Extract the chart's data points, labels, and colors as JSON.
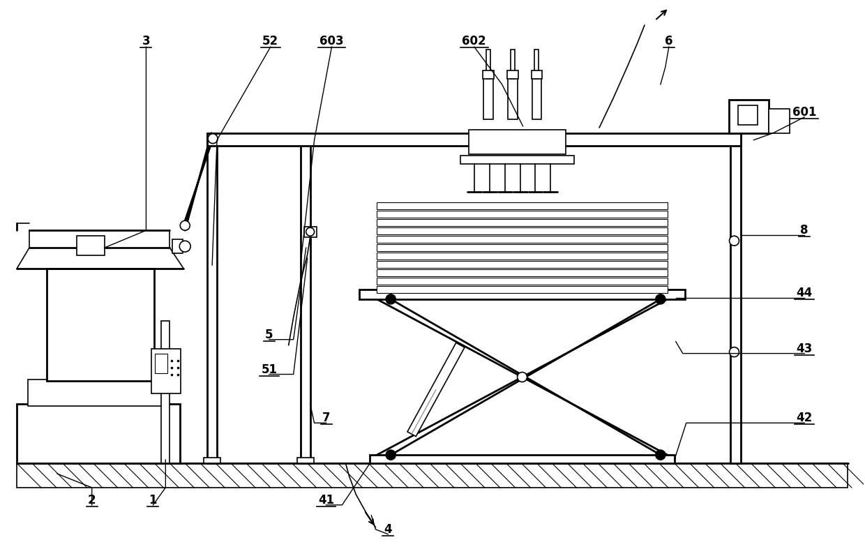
{
  "bg_color": "#ffffff",
  "lc": "#000000",
  "fig_w": 12.4,
  "fig_h": 7.97,
  "lw": 1.2,
  "lw2": 2.0,
  "lw3": 1.5
}
